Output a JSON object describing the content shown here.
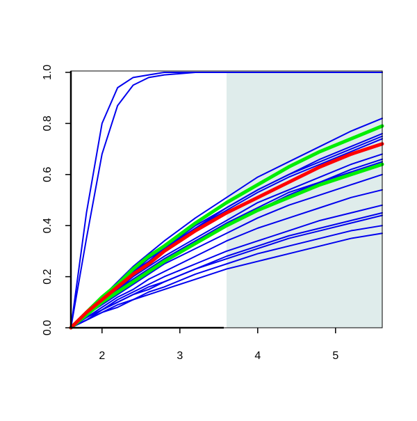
{
  "chart_data": {
    "type": "line",
    "x": [
      1.6,
      1.8,
      2.0,
      2.2,
      2.4,
      2.6,
      2.8,
      3.2,
      3.6,
      4.0,
      4.4,
      4.8,
      5.2,
      5.6
    ],
    "xlim": [
      1.6,
      5.6
    ],
    "ylim": [
      0,
      1
    ],
    "xticks": [
      2,
      3,
      4,
      5
    ],
    "yticks": [
      {
        "value": 0,
        "label": "0.0"
      },
      0.2,
      0.4,
      0.6,
      0.8,
      {
        "value": 1,
        "label": "1.0"
      }
    ],
    "shade": {
      "xlim": [
        3.6,
        5.6
      ],
      "color": "#dfeceb"
    },
    "series": [
      {
        "color": "#0000ee",
        "width": 2,
        "values": [
          0,
          0.45,
          0.8,
          0.94,
          0.98,
          0.99,
          1,
          1,
          1,
          1,
          1,
          1,
          1,
          1
        ]
      },
      {
        "color": "#0000ee",
        "width": 2,
        "values": [
          0,
          0.35,
          0.68,
          0.87,
          0.95,
          0.98,
          0.99,
          1,
          1,
          1,
          1,
          1,
          1,
          1
        ]
      },
      {
        "color": "#0000ee",
        "width": 2,
        "values": [
          0,
          0.06,
          0.12,
          0.18,
          0.24,
          0.29,
          0.34,
          0.43,
          0.51,
          0.59,
          0.65,
          0.71,
          0.77,
          0.82
        ]
      },
      {
        "color": "#0000ee",
        "width": 2,
        "values": [
          0,
          0.06,
          0.11,
          0.17,
          0.22,
          0.27,
          0.31,
          0.4,
          0.47,
          0.54,
          0.6,
          0.66,
          0.71,
          0.76
        ]
      },
      {
        "color": "#0000ee",
        "width": 2,
        "values": [
          0,
          0.06,
          0.11,
          0.17,
          0.22,
          0.26,
          0.31,
          0.39,
          0.47,
          0.54,
          0.6,
          0.65,
          0.7,
          0.75
        ]
      },
      {
        "color": "#0000ee",
        "width": 2,
        "values": [
          0,
          0.06,
          0.11,
          0.16,
          0.21,
          0.26,
          0.3,
          0.39,
          0.46,
          0.53,
          0.59,
          0.64,
          0.69,
          0.74
        ]
      },
      {
        "color": "#0000ee",
        "width": 2,
        "values": [
          0,
          0.05,
          0.1,
          0.15,
          0.2,
          0.24,
          0.28,
          0.35,
          0.42,
          0.49,
          0.54,
          0.59,
          0.64,
          0.68
        ]
      },
      {
        "color": "#0000ee",
        "width": 2,
        "values": [
          0,
          0.05,
          0.1,
          0.15,
          0.19,
          0.23,
          0.27,
          0.34,
          0.41,
          0.47,
          0.53,
          0.57,
          0.62,
          0.66
        ]
      },
      {
        "color": "#0000ee",
        "width": 2,
        "values": [
          0,
          0.05,
          0.1,
          0.14,
          0.19,
          0.23,
          0.27,
          0.34,
          0.4,
          0.46,
          0.52,
          0.57,
          0.61,
          0.65
        ]
      },
      {
        "color": "#0000ee",
        "width": 2,
        "values": [
          0,
          0.05,
          0.09,
          0.13,
          0.17,
          0.21,
          0.25,
          0.31,
          0.37,
          0.43,
          0.48,
          0.52,
          0.56,
          0.6
        ]
      },
      {
        "color": "#0000ee",
        "width": 2,
        "values": [
          0,
          0.04,
          0.08,
          0.12,
          0.15,
          0.19,
          0.22,
          0.28,
          0.34,
          0.39,
          0.43,
          0.47,
          0.51,
          0.54
        ]
      },
      {
        "color": "#0000ee",
        "width": 2,
        "values": [
          0,
          0.04,
          0.07,
          0.11,
          0.14,
          0.17,
          0.2,
          0.25,
          0.3,
          0.34,
          0.38,
          0.42,
          0.45,
          0.48
        ]
      },
      {
        "color": "#0000ee",
        "width": 2,
        "values": [
          0,
          0.03,
          0.07,
          0.1,
          0.13,
          0.16,
          0.18,
          0.23,
          0.28,
          0.32,
          0.36,
          0.39,
          0.42,
          0.45
        ]
      },
      {
        "color": "#0000ee",
        "width": 2,
        "values": [
          0,
          0.03,
          0.07,
          0.1,
          0.13,
          0.15,
          0.18,
          0.23,
          0.27,
          0.31,
          0.35,
          0.38,
          0.41,
          0.44
        ]
      },
      {
        "color": "#0000ee",
        "width": 2,
        "values": [
          0,
          0.03,
          0.06,
          0.09,
          0.11,
          0.14,
          0.16,
          0.21,
          0.25,
          0.29,
          0.32,
          0.35,
          0.38,
          0.4
        ]
      },
      {
        "color": "#0000ee",
        "width": 2,
        "values": [
          0,
          0.03,
          0.06,
          0.08,
          0.11,
          0.13,
          0.15,
          0.19,
          0.23,
          0.26,
          0.29,
          0.32,
          0.35,
          0.37
        ]
      },
      {
        "color": "#00ee00",
        "width": 5,
        "values": [
          0,
          0.06,
          0.12,
          0.17,
          0.23,
          0.28,
          0.32,
          0.41,
          0.49,
          0.56,
          0.63,
          0.69,
          0.74,
          0.79
        ]
      },
      {
        "color": "#00ee00",
        "width": 5,
        "values": [
          0,
          0.05,
          0.1,
          0.14,
          0.18,
          0.22,
          0.26,
          0.33,
          0.4,
          0.46,
          0.51,
          0.56,
          0.6,
          0.64
        ]
      },
      {
        "color": "#ff0000",
        "width": 5,
        "values": [
          0,
          0.06,
          0.11,
          0.16,
          0.21,
          0.25,
          0.3,
          0.38,
          0.45,
          0.51,
          0.57,
          0.63,
          0.68,
          0.72
        ]
      }
    ]
  }
}
